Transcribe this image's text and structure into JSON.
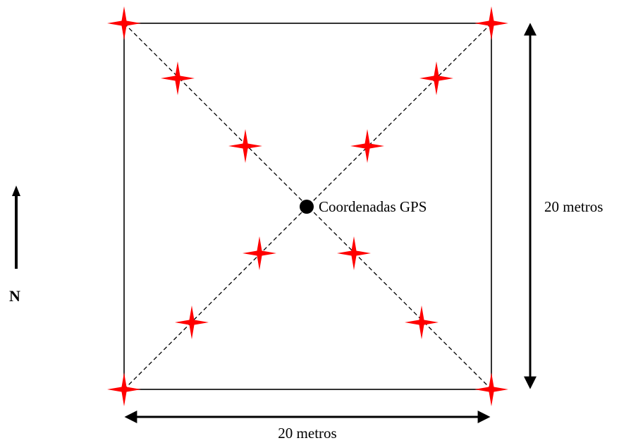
{
  "labels": {
    "gps": "Coordenadas GPS",
    "height": "20 metros",
    "width": "20 metros",
    "north": "N"
  },
  "colors": {
    "marker": "#ff0000",
    "line": "#000000",
    "background": "#ffffff"
  },
  "icons": {
    "marker": "four-point-star-icon",
    "center": "gps-point-icon",
    "north": "north-arrow-icon"
  },
  "markers": [
    "corner-top-left",
    "corner-top-right",
    "corner-bottom-left",
    "corner-bottom-right",
    "diagonal-top-left-outer",
    "diagonal-top-left-inner",
    "diagonal-top-right-outer",
    "diagonal-top-right-inner",
    "diagonal-bottom-left-inner",
    "diagonal-bottom-left-outer",
    "diagonal-bottom-right-inner",
    "diagonal-bottom-right-outer"
  ]
}
